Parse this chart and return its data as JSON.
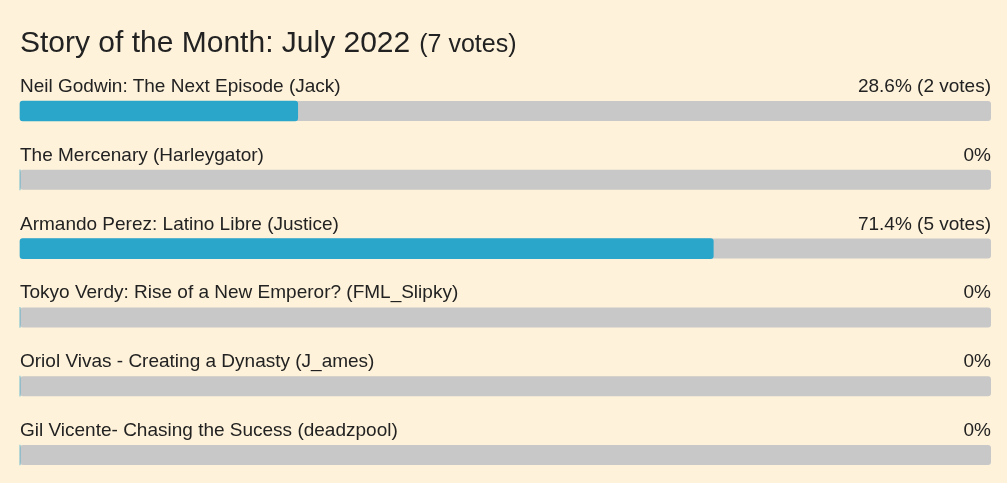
{
  "chart_data": {
    "type": "bar",
    "orientation": "horizontal",
    "title": "Story of the Month: July 2022",
    "subtitle": "(7 votes)",
    "categories": [
      "Neil Godwin: The Next Episode (Jack)",
      "The Mercenary (Harleygator)",
      "Armando Perez: Latino Libre (Justice)",
      "Tokyo Verdy: Rise of a New Emperor? (FML_Slipky)",
      "Oriol Vivas - Creating a Dynasty (J_ames)",
      "Gil Vicente- Chasing the Sucess (deadzpool)"
    ],
    "series": [
      {
        "color": "#2ba6cb",
        "values": [
          28.6,
          0,
          71.4,
          0,
          0,
          0
        ],
        "value_labels": [
          "28.6% (2 votes)",
          "0%",
          "71.4% (5 votes)",
          "0%",
          "0%",
          "0%"
        ]
      }
    ],
    "xlim": [
      0,
      100
    ],
    "tick_labels": "y"
  }
}
